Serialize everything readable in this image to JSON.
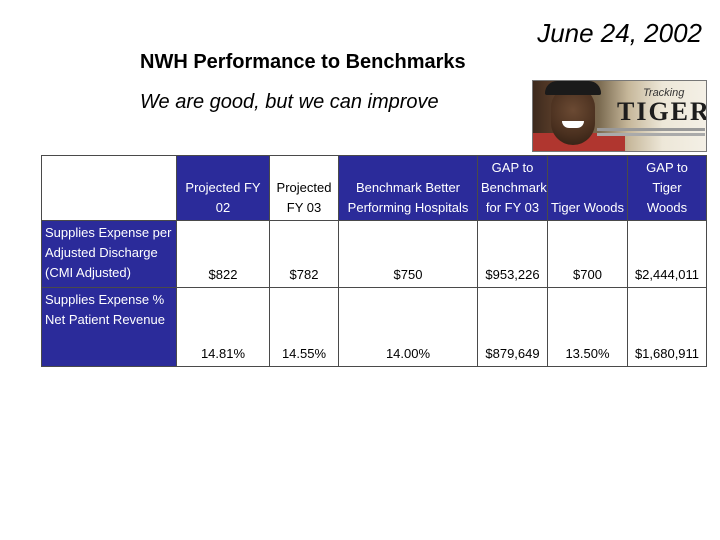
{
  "header": {
    "date": "June 24, 2002",
    "title": "NWH Performance to Benchmarks",
    "subtitle": "We are good, but we can improve"
  },
  "photo": {
    "heading_small": "Tracking",
    "heading_big": "TIGER"
  },
  "table": {
    "columns": [
      "",
      "Projected FY 02",
      "Projected FY 03",
      "Benchmark Better Performing Hospitals",
      "GAP to Benchmark for FY 03",
      "Tiger Woods",
      "GAP to Tiger Woods"
    ],
    "rows": [
      {
        "label": "Supplies Expense per Adjusted Discharge (CMI Adjusted)",
        "values": [
          "$822",
          "$782",
          "$750",
          "$953,226",
          "$700",
          "$2,444,011"
        ]
      },
      {
        "label": "Supplies Expense % Net Patient Revenue",
        "values": [
          "14.81%",
          "14.55%",
          "14.00%",
          "$879,649",
          "13.50%",
          "$1,680,911"
        ]
      }
    ]
  }
}
